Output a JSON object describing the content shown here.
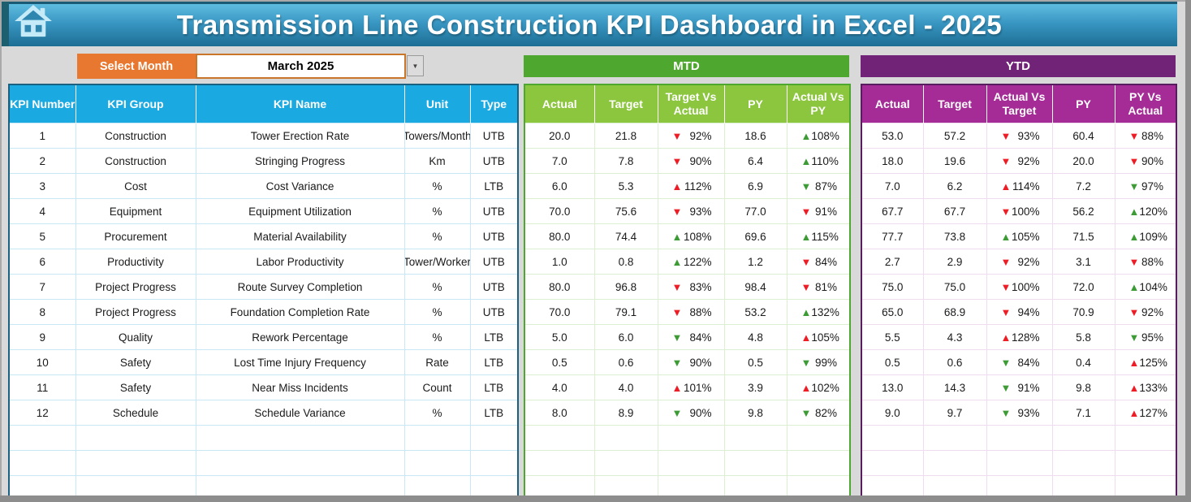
{
  "header": {
    "title": "Transmission Line Construction KPI Dashboard in Excel - 2025"
  },
  "month_selector": {
    "label": "Select Month",
    "value": "March 2025",
    "dropdown_glyph": "▼"
  },
  "kpi_table": {
    "headers": [
      "KPI Number",
      "KPI Group",
      "KPI Name",
      "Unit",
      "Type"
    ],
    "empty_row_count": 3,
    "rows": [
      [
        "1",
        "Construction",
        "Tower Erection Rate",
        "Towers/Month",
        "UTB"
      ],
      [
        "2",
        "Construction",
        "Stringing Progress",
        "Km",
        "UTB"
      ],
      [
        "3",
        "Cost",
        "Cost Variance",
        "%",
        "LTB"
      ],
      [
        "4",
        "Equipment",
        "Equipment Utilization",
        "%",
        "UTB"
      ],
      [
        "5",
        "Procurement",
        "Material Availability",
        "%",
        "UTB"
      ],
      [
        "6",
        "Productivity",
        "Labor Productivity",
        "Tower/Worker",
        "UTB"
      ],
      [
        "7",
        "Project Progress",
        "Route Survey Completion",
        "%",
        "UTB"
      ],
      [
        "8",
        "Project Progress",
        "Foundation Completion Rate",
        "%",
        "UTB"
      ],
      [
        "9",
        "Quality",
        "Rework Percentage",
        "%",
        "LTB"
      ],
      [
        "10",
        "Safety",
        "Lost Time Injury Frequency",
        "Rate",
        "LTB"
      ],
      [
        "11",
        "Safety",
        "Near Miss Incidents",
        "Count",
        "LTB"
      ],
      [
        "12",
        "Schedule",
        "Schedule Variance",
        "%",
        "LTB"
      ]
    ]
  },
  "mtd_table": {
    "title": "MTD",
    "headers": [
      "Actual",
      "Target",
      "Target Vs Actual",
      "PY",
      "Actual Vs PY"
    ],
    "empty_row_count": 3,
    "rows": [
      [
        "20.0",
        "21.8",
        {
          "arrow": "down",
          "color": "red",
          "value": "92%"
        },
        "18.6",
        {
          "arrow": "up",
          "color": "green",
          "value": "108%"
        }
      ],
      [
        "7.0",
        "7.8",
        {
          "arrow": "down",
          "color": "red",
          "value": "90%"
        },
        "6.4",
        {
          "arrow": "up",
          "color": "green",
          "value": "110%"
        }
      ],
      [
        "6.0",
        "5.3",
        {
          "arrow": "up",
          "color": "red",
          "value": "112%"
        },
        "6.9",
        {
          "arrow": "down",
          "color": "green",
          "value": "87%"
        }
      ],
      [
        "70.0",
        "75.6",
        {
          "arrow": "down",
          "color": "red",
          "value": "93%"
        },
        "77.0",
        {
          "arrow": "down",
          "color": "red",
          "value": "91%"
        }
      ],
      [
        "80.0",
        "74.4",
        {
          "arrow": "up",
          "color": "green",
          "value": "108%"
        },
        "69.6",
        {
          "arrow": "up",
          "color": "green",
          "value": "115%"
        }
      ],
      [
        "1.0",
        "0.8",
        {
          "arrow": "up",
          "color": "green",
          "value": "122%"
        },
        "1.2",
        {
          "arrow": "down",
          "color": "red",
          "value": "84%"
        }
      ],
      [
        "80.0",
        "96.8",
        {
          "arrow": "down",
          "color": "red",
          "value": "83%"
        },
        "98.4",
        {
          "arrow": "down",
          "color": "red",
          "value": "81%"
        }
      ],
      [
        "70.0",
        "79.1",
        {
          "arrow": "down",
          "color": "red",
          "value": "88%"
        },
        "53.2",
        {
          "arrow": "up",
          "color": "green",
          "value": "132%"
        }
      ],
      [
        "5.0",
        "6.0",
        {
          "arrow": "down",
          "color": "green",
          "value": "84%"
        },
        "4.8",
        {
          "arrow": "up",
          "color": "red",
          "value": "105%"
        }
      ],
      [
        "0.5",
        "0.6",
        {
          "arrow": "down",
          "color": "green",
          "value": "90%"
        },
        "0.5",
        {
          "arrow": "down",
          "color": "green",
          "value": "99%"
        }
      ],
      [
        "4.0",
        "4.0",
        {
          "arrow": "up",
          "color": "red",
          "value": "101%"
        },
        "3.9",
        {
          "arrow": "up",
          "color": "red",
          "value": "102%"
        }
      ],
      [
        "8.0",
        "8.9",
        {
          "arrow": "down",
          "color": "green",
          "value": "90%"
        },
        "9.8",
        {
          "arrow": "down",
          "color": "green",
          "value": "82%"
        }
      ]
    ]
  },
  "ytd_table": {
    "title": "YTD",
    "headers": [
      "Actual",
      "Target",
      "Actual Vs Target",
      "PY",
      "PY Vs Actual"
    ],
    "empty_row_count": 3,
    "rows": [
      [
        "53.0",
        "57.2",
        {
          "arrow": "down",
          "color": "red",
          "value": "93%"
        },
        "60.4",
        {
          "arrow": "down",
          "color": "red",
          "value": "88%"
        }
      ],
      [
        "18.0",
        "19.6",
        {
          "arrow": "down",
          "color": "red",
          "value": "92%"
        },
        "20.0",
        {
          "arrow": "down",
          "color": "red",
          "value": "90%"
        }
      ],
      [
        "7.0",
        "6.2",
        {
          "arrow": "up",
          "color": "red",
          "value": "114%"
        },
        "7.2",
        {
          "arrow": "down",
          "color": "green",
          "value": "97%"
        }
      ],
      [
        "67.7",
        "67.7",
        {
          "arrow": "down",
          "color": "red",
          "value": "100%"
        },
        "56.2",
        {
          "arrow": "up",
          "color": "green",
          "value": "120%"
        }
      ],
      [
        "77.7",
        "73.8",
        {
          "arrow": "up",
          "color": "green",
          "value": "105%"
        },
        "71.5",
        {
          "arrow": "up",
          "color": "green",
          "value": "109%"
        }
      ],
      [
        "2.7",
        "2.9",
        {
          "arrow": "down",
          "color": "red",
          "value": "92%"
        },
        "3.1",
        {
          "arrow": "down",
          "color": "red",
          "value": "88%"
        }
      ],
      [
        "75.0",
        "75.0",
        {
          "arrow": "down",
          "color": "red",
          "value": "100%"
        },
        "72.0",
        {
          "arrow": "up",
          "color": "green",
          "value": "104%"
        }
      ],
      [
        "65.0",
        "68.9",
        {
          "arrow": "down",
          "color": "red",
          "value": "94%"
        },
        "70.9",
        {
          "arrow": "down",
          "color": "red",
          "value": "92%"
        }
      ],
      [
        "5.5",
        "4.3",
        {
          "arrow": "up",
          "color": "red",
          "value": "128%"
        },
        "5.8",
        {
          "arrow": "down",
          "color": "green",
          "value": "95%"
        }
      ],
      [
        "0.5",
        "0.6",
        {
          "arrow": "down",
          "color": "green",
          "value": "84%"
        },
        "0.4",
        {
          "arrow": "up",
          "color": "red",
          "value": "125%"
        }
      ],
      [
        "13.0",
        "14.3",
        {
          "arrow": "down",
          "color": "green",
          "value": "91%"
        },
        "9.8",
        {
          "arrow": "up",
          "color": "red",
          "value": "133%"
        }
      ],
      [
        "9.0",
        "9.7",
        {
          "arrow": "down",
          "color": "green",
          "value": "93%"
        },
        "7.1",
        {
          "arrow": "up",
          "color": "red",
          "value": "127%"
        }
      ]
    ]
  },
  "colors": {
    "banner_bottom": "#1D6E94",
    "banner_edge": "#1D5F6E",
    "home_icon": "#C5EAF8",
    "orange": "#E8782F",
    "orange_border": "#C9762B",
    "kpi_header": "#1BA9E1",
    "kpi_border": "#1A6080",
    "kpi_grid": "#C9E8F5",
    "mtd_banner": "#4EA72E",
    "mtd_header": "#8CC63E",
    "mtd_border": "#4EA72E",
    "mtd_grid": "#DCEFD2",
    "ytd_banner": "#702377",
    "ytd_header": "#A52C96",
    "ytd_border": "#581D5E",
    "ytd_grid": "#F0DCEF",
    "arrow_red": "#EE1C25",
    "arrow_green": "#3D9B35"
  }
}
